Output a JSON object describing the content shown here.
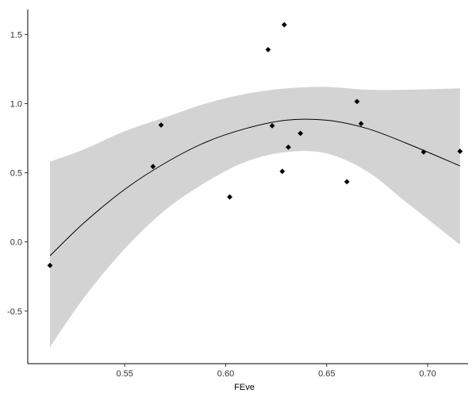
{
  "chart_data": {
    "type": "scatter",
    "title": "",
    "xlabel": "FEve",
    "ylabel": "",
    "xlim": [
      0.502,
      0.72
    ],
    "ylim": [
      -0.88,
      1.68
    ],
    "x_ticks": [
      0.55,
      0.6,
      0.65,
      0.7
    ],
    "x_tick_labels": [
      "0.55",
      "0.60",
      "0.65",
      "0.70"
    ],
    "y_ticks": [
      -0.5,
      0.0,
      0.5,
      1.0,
      1.5
    ],
    "y_tick_labels": [
      "-0.5",
      "0.0",
      "0.5",
      "1.0",
      "1.5"
    ],
    "grid": false,
    "points": [
      {
        "x": 0.513,
        "y": -0.17
      },
      {
        "x": 0.564,
        "y": 0.545
      },
      {
        "x": 0.568,
        "y": 0.845
      },
      {
        "x": 0.602,
        "y": 0.325
      },
      {
        "x": 0.621,
        "y": 1.39
      },
      {
        "x": 0.623,
        "y": 0.84
      },
      {
        "x": 0.628,
        "y": 0.51
      },
      {
        "x": 0.629,
        "y": 1.57
      },
      {
        "x": 0.631,
        "y": 0.685
      },
      {
        "x": 0.637,
        "y": 0.785
      },
      {
        "x": 0.66,
        "y": 0.435
      },
      {
        "x": 0.665,
        "y": 1.015
      },
      {
        "x": 0.667,
        "y": 0.855
      },
      {
        "x": 0.698,
        "y": 0.65
      },
      {
        "x": 0.716,
        "y": 0.655
      }
    ],
    "fit_line": {
      "x": [
        0.513,
        0.53,
        0.55,
        0.57,
        0.59,
        0.61,
        0.63,
        0.65,
        0.67,
        0.69,
        0.716
      ],
      "y": [
        -0.1,
        0.14,
        0.38,
        0.57,
        0.72,
        0.82,
        0.88,
        0.88,
        0.82,
        0.71,
        0.55
      ]
    },
    "confidence_band": {
      "x": [
        0.513,
        0.53,
        0.55,
        0.57,
        0.59,
        0.61,
        0.63,
        0.65,
        0.67,
        0.69,
        0.716
      ],
      "lower": [
        -0.76,
        -0.4,
        -0.05,
        0.23,
        0.43,
        0.58,
        0.65,
        0.64,
        0.51,
        0.28,
        -0.02
      ],
      "upper": [
        0.58,
        0.67,
        0.8,
        0.9,
        1.0,
        1.07,
        1.11,
        1.12,
        1.1,
        1.1,
        1.11
      ]
    },
    "colors": {
      "points": "#000000",
      "fit_line": "#000000",
      "band": "#d3d3d3",
      "axis": "#000000"
    }
  }
}
